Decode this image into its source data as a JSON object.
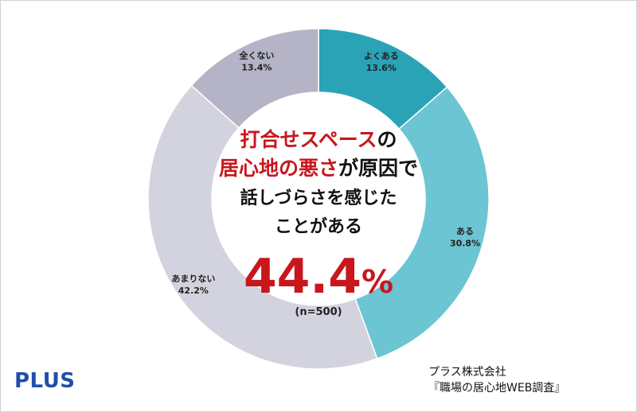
{
  "chart_data": {
    "type": "pie",
    "variant": "donut",
    "categories": [
      "よくある",
      "ある",
      "あまりない",
      "全くない"
    ],
    "values": [
      13.6,
      30.8,
      42.2,
      13.4
    ],
    "value_labels": [
      "13.6%",
      "30.8%",
      "42.2%",
      "13.4%"
    ],
    "colors": [
      "#2aa3b7",
      "#6cc5d2",
      "#d3d3df",
      "#b4b4c6"
    ],
    "start": "top",
    "direction": "clockwise",
    "center_text": {
      "lines": [
        [
          {
            "text": "打合せスペース",
            "color": "#c8161d"
          },
          {
            "text": "の",
            "color": "#111111"
          }
        ],
        [
          {
            "text": "居心地の悪さ",
            "color": "#c8161d"
          },
          {
            "text": "が原因で",
            "color": "#111111"
          }
        ],
        [
          {
            "text": "話しづらさを感じた",
            "color": "#111111"
          }
        ],
        [
          {
            "text": "ことがある",
            "color": "#111111"
          }
        ]
      ],
      "big_value_main": "44.4",
      "big_value_unit": "%",
      "big_value_color": "#c8161d",
      "sample": "(n=500)"
    }
  },
  "brand": {
    "logo": "PLUS",
    "color": "#1f4fa8"
  },
  "source": {
    "line1": "プラス株式会社",
    "line2": "『職場の居心地WEB調査』"
  }
}
